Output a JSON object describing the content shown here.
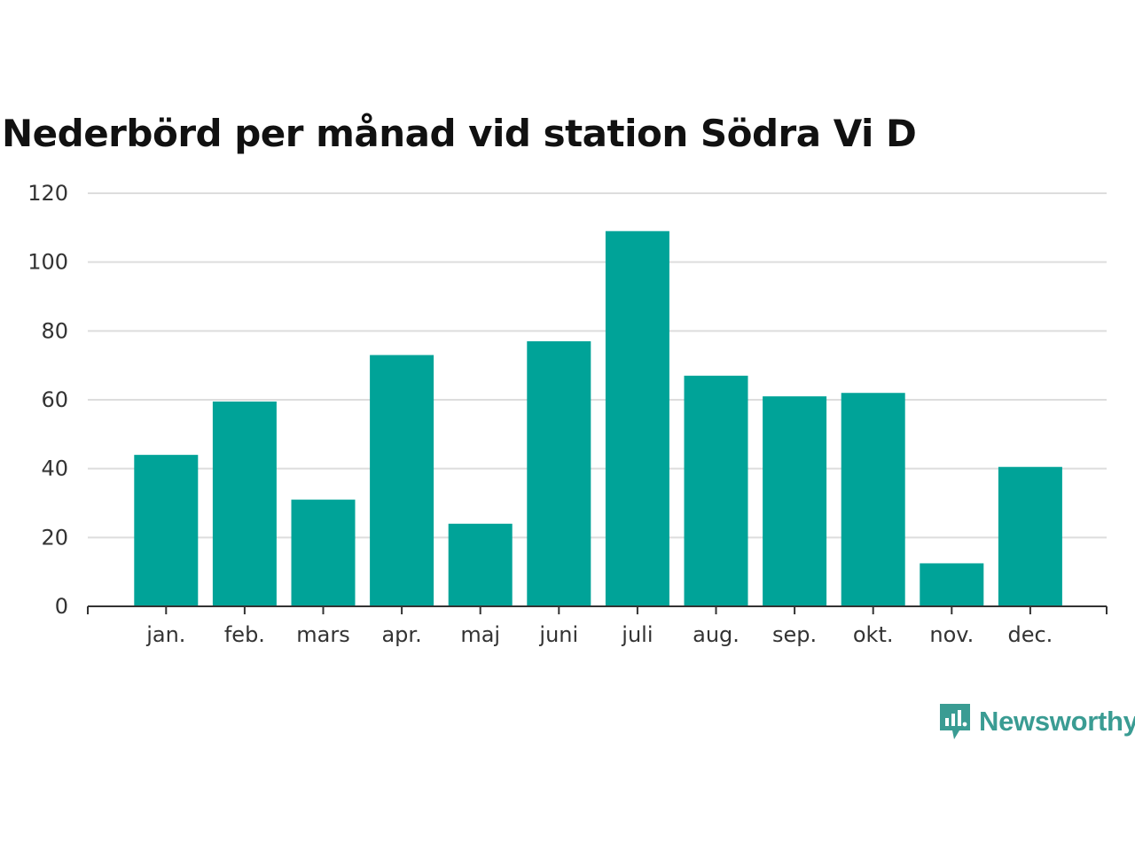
{
  "chart_data": {
    "type": "bar",
    "title": "Nederbörd per månad vid station Södra Vi D",
    "xlabel": "",
    "ylabel": "",
    "categories": [
      "jan.",
      "feb.",
      "mars",
      "apr.",
      "maj",
      "juni",
      "juli",
      "aug.",
      "sep.",
      "okt.",
      "nov.",
      "dec."
    ],
    "values": [
      44,
      59.5,
      31,
      73,
      24,
      77,
      109,
      67,
      61,
      62,
      12.5,
      40.5
    ],
    "ylim": [
      0,
      120
    ],
    "yticks": [
      0,
      20,
      40,
      60,
      80,
      100,
      120
    ],
    "grid": true,
    "bar_color": "#00a398",
    "grid_color": "#dddddd",
    "axis_color": "#333333"
  },
  "brand": {
    "name": "Newsworthy",
    "icon": "newsworthy-logo-icon",
    "color": "#3a9c93"
  }
}
